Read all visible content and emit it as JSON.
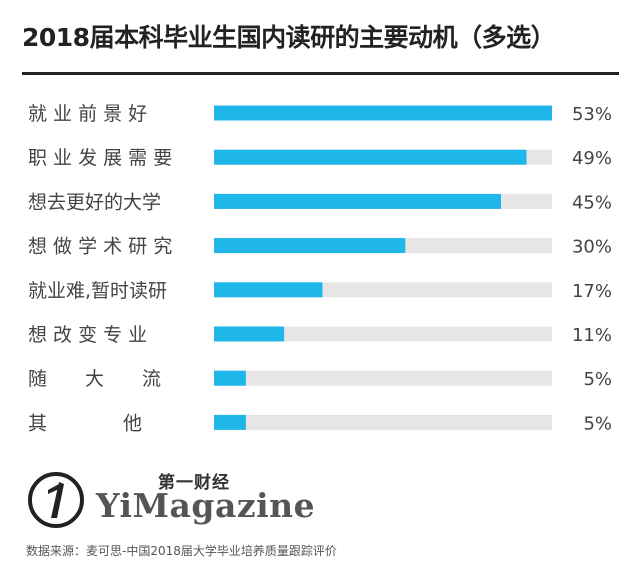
{
  "title": "2018届本科毕业生国内读研的主要动机（多选）",
  "brand": {
    "name_cn": "第一财经",
    "name_en": "YiMagazine",
    "logo_icon": "yicai-logo-icon"
  },
  "source": "数据来源：麦可思-中国2018届大学毕业培养质量跟踪评价",
  "colors": {
    "bar": "#1fb6ea",
    "track": "#e6e6e6",
    "text": "#444444"
  },
  "chart_data": {
    "type": "bar",
    "orientation": "horizontal",
    "title": "2018届本科毕业生国内读研的主要动机（多选）",
    "categories": [
      "就 业 前 景 好",
      "职 业 发 展 需 要",
      "想去更好的大学",
      "想 做 学 术 研 究",
      "就业难,暂时读研",
      "想 改 变 专 业",
      "随　　大　　流",
      "其　　　　他"
    ],
    "values": [
      53,
      49,
      45,
      30,
      17,
      11,
      5,
      5
    ],
    "value_labels": [
      "53%",
      "49%",
      "45%",
      "30%",
      "17%",
      "11%",
      "5%",
      "5%"
    ],
    "xlim": [
      0,
      53
    ],
    "unit": "%",
    "grid": false,
    "legend": "none"
  }
}
